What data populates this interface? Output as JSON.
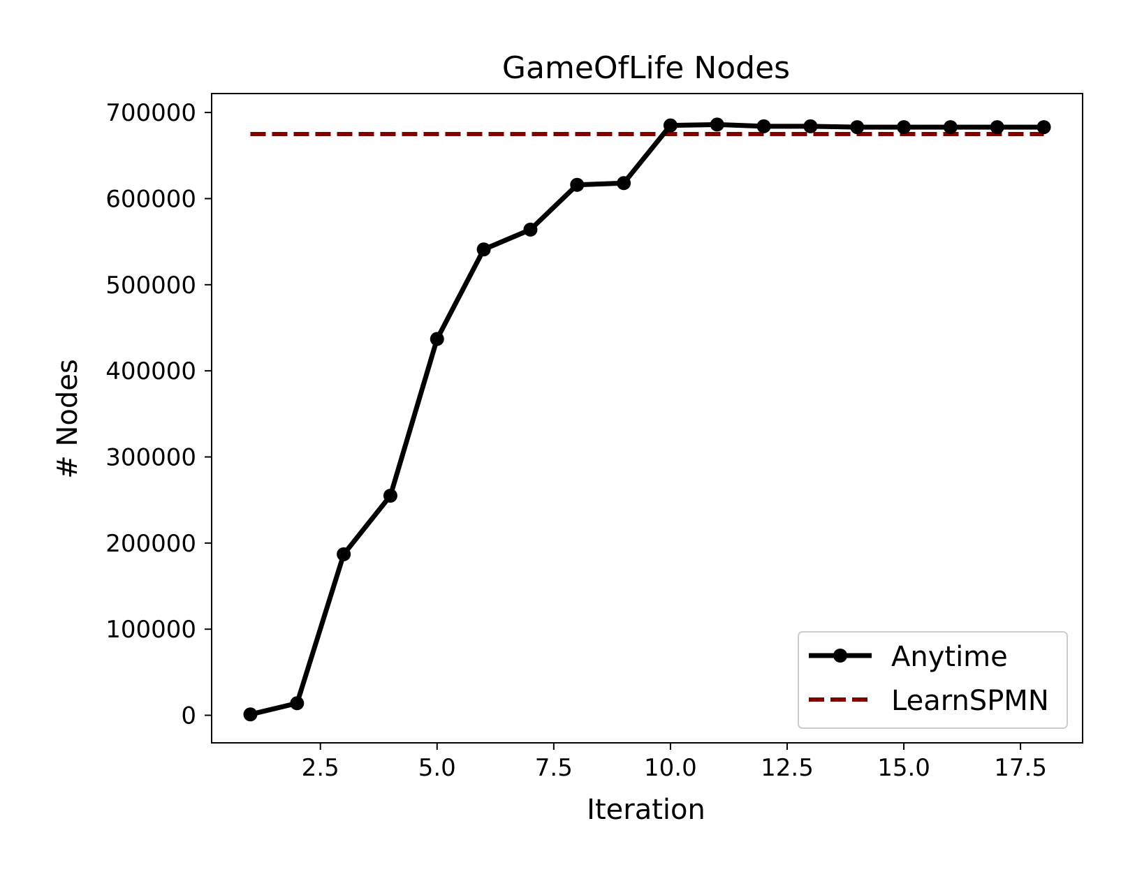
{
  "chart_data": {
    "type": "line",
    "title": "GameOfLife Nodes",
    "xlabel": "Iteration",
    "ylabel": "# Nodes",
    "xlim": [
      0.17,
      18.83
    ],
    "ylim": [
      -32000,
      722000
    ],
    "xticks": [
      2.5,
      5.0,
      7.5,
      10.0,
      12.5,
      15.0,
      17.5
    ],
    "xtick_labels": [
      "2.5",
      "5.0",
      "7.5",
      "10.0",
      "12.5",
      "15.0",
      "17.5"
    ],
    "yticks": [
      0,
      100000,
      200000,
      300000,
      400000,
      500000,
      600000,
      700000
    ],
    "ytick_labels": [
      "0",
      "100000",
      "200000",
      "300000",
      "400000",
      "500000",
      "600000",
      "700000"
    ],
    "grid": false,
    "legend_position": "bottom-right",
    "series": [
      {
        "name": "Anytime",
        "style": "solid-marker",
        "color": "#000000",
        "x": [
          1,
          2,
          3,
          4,
          5,
          6,
          7,
          8,
          9,
          10,
          11,
          12,
          13,
          14,
          15,
          16,
          17,
          18
        ],
        "y": [
          1000,
          14000,
          187000,
          255000,
          437000,
          541000,
          564000,
          616000,
          618000,
          685000,
          686000,
          684000,
          684000,
          683000,
          683000,
          683000,
          683000,
          683000
        ]
      },
      {
        "name": "LearnSPMN",
        "style": "dashed",
        "color": "#800000",
        "x": [
          1,
          18
        ],
        "y": [
          675000,
          675000
        ]
      }
    ]
  }
}
